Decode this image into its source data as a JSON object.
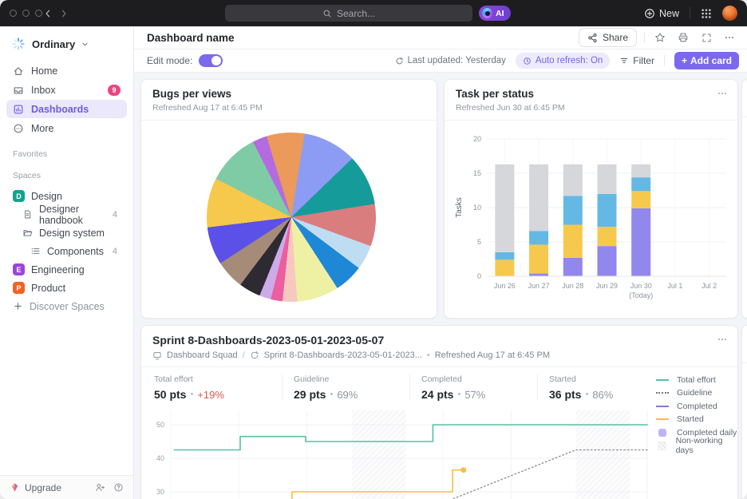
{
  "topbar": {
    "search_placeholder": "Search...",
    "ai_label": "AI",
    "new_label": "New"
  },
  "sidebar": {
    "workspace": "Ordinary",
    "nav": [
      {
        "label": "Home"
      },
      {
        "label": "Inbox",
        "badge": "9"
      },
      {
        "label": "Dashboards"
      },
      {
        "label": "More"
      }
    ],
    "sections": {
      "favorites": "Favorites",
      "spaces": "Spaces"
    },
    "spaces": [
      {
        "initial": "D",
        "label": "Design",
        "color": "#14a38f"
      },
      {
        "label": "Designer handbook",
        "count": "4"
      },
      {
        "label": "Design system"
      },
      {
        "label": "Components",
        "count": "4"
      },
      {
        "initial": "E",
        "label": "Engineering",
        "color": "#9a46d7"
      },
      {
        "initial": "P",
        "label": "Product",
        "color": "#f26322"
      }
    ],
    "discover_label": "Discover Spaces",
    "upgrade_label": "Upgrade"
  },
  "header": {
    "title": "Dashboard name",
    "share_label": "Share"
  },
  "toolbar": {
    "edit_mode_label": "Edit mode:",
    "last_updated": "Last updated: Yesterday",
    "auto_refresh": "Auto refresh: On",
    "filter_label": "Filter",
    "add_card_label": "Add card",
    "add_card_plus": "+"
  },
  "cards": {
    "bugs": {
      "title": "Bugs per views",
      "refreshed": "Refreshed Aug 17 at 6:45 PM"
    },
    "tasks": {
      "title": "Task per status",
      "refreshed": "Refreshed Jun 30 at 6:45 PM"
    },
    "sprint": {
      "title": "Sprint 8-Dashboards-2023-05-01-2023-05-07",
      "breadcrumb": {
        "team": "Dashboard Squad",
        "sep": "/",
        "sprint": "Sprint 8-Dashboards-2023-05-01-2023...",
        "dot": "•",
        "refreshed": "Refreshed Aug 17 at 6:45 PM"
      },
      "stats": [
        {
          "label": "Total effort",
          "value": "50 pts",
          "dot": "•",
          "pct": "+19%",
          "pct_color": "#d8584b"
        },
        {
          "label": "Guideline",
          "value": "29 pts",
          "dot": "•",
          "pct": "69%",
          "pct_color": "#8d95a1"
        },
        {
          "label": "Completed",
          "value": "24 pts",
          "dot": "•",
          "pct": "57%",
          "pct_color": "#8d95a1"
        },
        {
          "label": "Started",
          "value": "36 pts",
          "dot": "•",
          "pct": "86%",
          "pct_color": "#8d95a1"
        }
      ],
      "legend": [
        {
          "label": "Total effort",
          "color": "#55c2a2",
          "swatch": "line"
        },
        {
          "label": "Guideline",
          "color": "#74747a",
          "swatch": "dotted"
        },
        {
          "label": "Completed",
          "color": "#8274e9",
          "swatch": "line"
        },
        {
          "label": "Started",
          "color": "#f5bd4a",
          "swatch": "line"
        },
        {
          "label": "Completed daily",
          "color": "#b3a7f3",
          "swatch": "square"
        },
        {
          "label": "Non-working days",
          "color": "#e6e6ea",
          "swatch": "hatch"
        }
      ]
    }
  },
  "chart_data": [
    {
      "type": "pie",
      "title": "Bugs per views",
      "rotate_deg": -17,
      "slices": [
        {
          "color": "#eb9a5b",
          "deg": 26
        },
        {
          "color": "#8c9cf4",
          "deg": 37
        },
        {
          "color": "#169b9b",
          "deg": 35
        },
        {
          "color": "#da7d7e",
          "deg": 29
        },
        {
          "color": "#bfddf2",
          "deg": 17
        },
        {
          "color": "#1e88d6",
          "deg": 20
        },
        {
          "color": "#eef0a3",
          "deg": 29
        },
        {
          "color": "#f7c8bf",
          "deg": 10
        },
        {
          "color": "#eb5e9f",
          "deg": 8
        },
        {
          "color": "#cdabe9",
          "deg": 8
        },
        {
          "color": "#2e2a32",
          "deg": 15
        },
        {
          "color": "#a68b78",
          "deg": 20
        },
        {
          "color": "#5b50e7",
          "deg": 26
        },
        {
          "color": "#f6c84c",
          "deg": 34
        },
        {
          "color": "#7fcba5",
          "deg": 36
        },
        {
          "color": "#b56be0",
          "deg": 10
        }
      ]
    },
    {
      "type": "bar",
      "stacked": true,
      "title": "Task per status",
      "ylabel": "Tasks",
      "ylim": [
        0,
        20
      ],
      "yticks": [
        0,
        5,
        10,
        15,
        20
      ],
      "categories": [
        "Jun 26",
        "Jun 27",
        "Jun 28",
        "Jun 29",
        "Jun 30",
        "Jul 1",
        "Jul 2"
      ],
      "category_sublabels": [
        "",
        "",
        "",
        "",
        "(Today)",
        "",
        ""
      ],
      "series": [
        {
          "name": "purple",
          "color": "#9287ec",
          "values": [
            0,
            0.4,
            2.7,
            4.4,
            9.9,
            0,
            0
          ]
        },
        {
          "name": "yellow",
          "color": "#f6c94e",
          "values": [
            2.4,
            4.2,
            4.8,
            2.8,
            2.5,
            0,
            0
          ]
        },
        {
          "name": "blue",
          "color": "#64b9e4",
          "values": [
            1.1,
            2.0,
            4.2,
            4.8,
            2.0,
            0,
            0
          ]
        },
        {
          "name": "gray",
          "color": "#d5d7db",
          "values": [
            12.8,
            9.7,
            4.6,
            4.3,
            1.9,
            0,
            0
          ]
        }
      ]
    },
    {
      "type": "line",
      "title": "Sprint 8-Dashboards-2023-05-01-2023-05-07 burnup",
      "yticks": [
        50,
        40,
        30
      ],
      "xlim_days": [
        0,
        7
      ],
      "non_working_day_ranges": [
        [
          2.66,
          3.45
        ],
        [
          5.95,
          6.74
        ]
      ],
      "series": [
        {
          "name": "Total effort",
          "color": "#55c2a2",
          "style": "solid",
          "points": [
            [
              0.05,
              42.5
            ],
            [
              1.02,
              42.5
            ],
            [
              1.02,
              46.5
            ],
            [
              1.98,
              46.5
            ],
            [
              1.98,
              45
            ],
            [
              3.85,
              45
            ],
            [
              3.85,
              50
            ],
            [
              7,
              50
            ]
          ]
        },
        {
          "name": "Guideline",
          "color": "#8b8b90",
          "style": "dotted",
          "points": [
            [
              3.6,
              23.5
            ],
            [
              5.95,
              42.5
            ],
            [
              7,
              42.5
            ]
          ]
        },
        {
          "name": "Completed",
          "color": "#8274e9",
          "style": "solid",
          "points": []
        },
        {
          "name": "Started",
          "color": "#f5bd4a",
          "style": "solid",
          "points": [
            [
              1.78,
              22
            ],
            [
              1.78,
              30
            ],
            [
              4.14,
              30
            ],
            [
              4.14,
              36.5
            ],
            [
              4.3,
              36.5
            ]
          ],
          "marker": [
            4.3,
            36.5
          ]
        }
      ]
    }
  ]
}
